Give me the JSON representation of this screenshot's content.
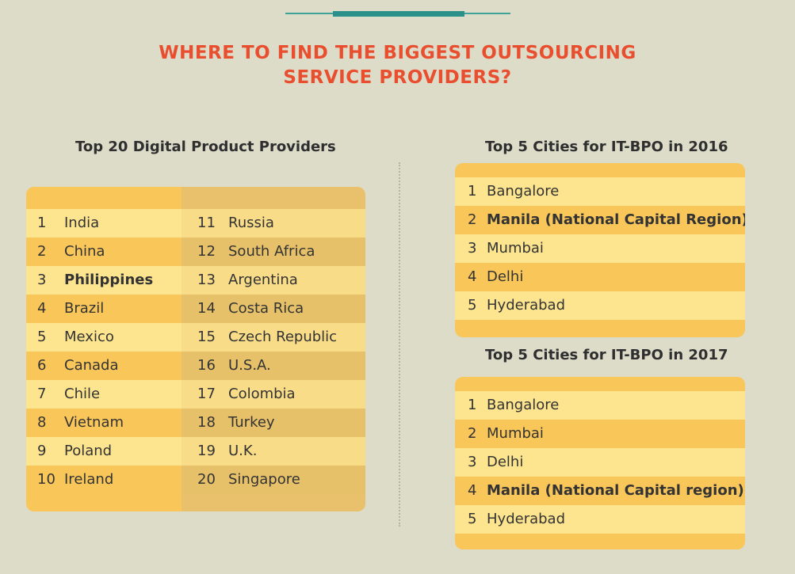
{
  "title": {
    "line1": "WHERE TO FIND THE BIGGEST OUTSOURCING",
    "line2": "SERVICE PROVIDERS?"
  },
  "colors": {
    "background": "#dcdcc9",
    "title": "#e94e2f",
    "accent_teal": "#2b8f8a",
    "table_light": "#fde58f",
    "table_dark": "#f9c65a"
  },
  "top20": {
    "heading": "Top 20 Digital Product Providers",
    "rows": [
      {
        "ln": "1",
        "lname": "India",
        "rn": "11",
        "rname": "Russia"
      },
      {
        "ln": "2",
        "lname": "China",
        "rn": "12",
        "rname": "South Africa"
      },
      {
        "ln": "3",
        "lname": "Philippines",
        "rn": "13",
        "rname": "Argentina"
      },
      {
        "ln": "4",
        "lname": "Brazil",
        "rn": "14",
        "rname": "Costa Rica"
      },
      {
        "ln": "5",
        "lname": "Mexico",
        "rn": "15",
        "rname": "Czech Republic"
      },
      {
        "ln": "6",
        "lname": "Canada",
        "rn": "16",
        "rname": "U.S.A."
      },
      {
        "ln": "7",
        "lname": "Chile",
        "rn": "17",
        "rname": "Colombia"
      },
      {
        "ln": "8",
        "lname": "Vietnam",
        "rn": "18",
        "rname": "Turkey"
      },
      {
        "ln": "9",
        "lname": "Poland",
        "rn": "19",
        "rname": "U.K."
      },
      {
        "ln": "10",
        "lname": "Ireland",
        "rn": "20",
        "rname": "Singapore"
      }
    ]
  },
  "cities2016": {
    "heading": "Top 5 Cities for IT-BPO in 2016",
    "rows": [
      {
        "n": "1",
        "name": "Bangalore"
      },
      {
        "n": "2",
        "name": "Manila (National Capital Region)"
      },
      {
        "n": "3",
        "name": "Mumbai"
      },
      {
        "n": "4",
        "name": "Delhi"
      },
      {
        "n": "5",
        "name": "Hyderabad"
      }
    ]
  },
  "cities2017": {
    "heading": "Top 5 Cities for IT-BPO in 2017",
    "rows": [
      {
        "n": "1",
        "name": "Bangalore"
      },
      {
        "n": "2",
        "name": "Mumbai"
      },
      {
        "n": "3",
        "name": "Delhi"
      },
      {
        "n": "4",
        "name": "Manila (National Capital region)"
      },
      {
        "n": "5",
        "name": "Hyderabad"
      }
    ]
  }
}
